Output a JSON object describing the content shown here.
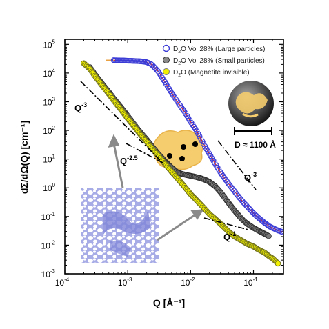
{
  "chart_data": {
    "type": "scatter",
    "x_scale": "log",
    "y_scale": "log",
    "xlim": [
      0.0001,
      0.3
    ],
    "ylim": [
      0.001,
      150000
    ],
    "xlabel": "Q [Å⁻¹]",
    "ylabel": "dΣ/dΩ(Q) [cm⁻¹]",
    "x_ticks": [
      {
        "value": 0.0001,
        "base": "10",
        "exp": "-4"
      },
      {
        "value": 0.001,
        "base": "10",
        "exp": "-3"
      },
      {
        "value": 0.01,
        "base": "10",
        "exp": "-2"
      },
      {
        "value": 0.1,
        "base": "10",
        "exp": "-1"
      }
    ],
    "y_ticks": [
      {
        "value": 0.001,
        "base": "10",
        "exp": "-3"
      },
      {
        "value": 0.01,
        "base": "10",
        "exp": "-2"
      },
      {
        "value": 0.1,
        "base": "10",
        "exp": "-1"
      },
      {
        "value": 1,
        "base": "10",
        "exp": "0"
      },
      {
        "value": 10,
        "base": "10",
        "exp": "1"
      },
      {
        "value": 100,
        "base": "10",
        "exp": "2"
      },
      {
        "value": 1000,
        "base": "10",
        "exp": "3"
      },
      {
        "value": 10000,
        "base": "10",
        "exp": "4"
      },
      {
        "value": 100000,
        "base": "10",
        "exp": "5"
      }
    ],
    "legend_position": "top-right",
    "legend": [
      {
        "pre": "D",
        "sub": "2",
        "post": "O Vol 28% (Large particles)",
        "marker": "open-circle",
        "color": "#3b3bd6"
      },
      {
        "pre": "D",
        "sub": "2",
        "post": "O Vol 28% (Small particles)",
        "marker": "filled-circle",
        "color": "#8a8a8a"
      },
      {
        "pre": "D",
        "sub": "2",
        "post": "O (Magnetite invisible)",
        "marker": "filled-circle",
        "color": "#f0f000"
      }
    ],
    "series": [
      {
        "name": "D2O Vol 28% (Large particles)",
        "marker": "open-circle",
        "color": "#3b3bd6",
        "x": [
          0.0006,
          0.0008,
          0.001,
          0.0012,
          0.0015,
          0.0018,
          0.002,
          0.0024,
          0.003,
          0.004,
          0.005,
          0.006,
          0.008,
          0.01,
          0.012,
          0.014,
          0.016,
          0.018,
          0.02,
          0.025,
          0.03,
          0.035,
          0.04,
          0.05,
          0.06,
          0.07,
          0.08,
          0.1,
          0.12,
          0.15,
          0.18,
          0.2,
          0.25,
          0.3
        ],
        "y": [
          28000,
          27500,
          27000,
          26500,
          26000,
          25000,
          24000,
          20000,
          12000,
          4500,
          2000,
          1100,
          450,
          200,
          110,
          60,
          35,
          22,
          15,
          6.5,
          3.4,
          2.1,
          1.4,
          0.75,
          0.45,
          0.3,
          0.22,
          0.13,
          0.09,
          0.06,
          0.045,
          0.04,
          0.032,
          0.028
        ]
      },
      {
        "name": "D2O Vol 28% (Small particles)",
        "marker": "filled-circle",
        "color": "#8a8a8a",
        "x": [
          0.00025,
          0.0003,
          0.0004,
          0.0005,
          0.0006,
          0.0008,
          0.001,
          0.0012,
          0.0015,
          0.002,
          0.0025,
          0.003,
          0.004,
          0.005,
          0.006,
          0.007,
          0.008,
          0.01,
          0.012,
          0.015,
          0.018,
          0.02,
          0.025,
          0.03,
          0.04,
          0.05,
          0.06,
          0.07,
          0.08,
          0.1,
          0.12,
          0.15,
          0.18
        ],
        "y": [
          16000,
          9000,
          4000,
          2200,
          1300,
          600,
          320,
          190,
          100,
          48,
          26,
          16,
          8,
          5,
          3.6,
          3.1,
          2.9,
          2.6,
          2.4,
          2.1,
          1.8,
          1.6,
          1.1,
          0.7,
          0.3,
          0.16,
          0.1,
          0.07,
          0.055,
          0.04,
          0.032,
          0.025,
          0.02
        ]
      },
      {
        "name": "D2O (Magnetite invisible)",
        "marker": "filled-circle",
        "color": "#f0f000",
        "x": [
          0.0002,
          0.00025,
          0.0003,
          0.0004,
          0.0005,
          0.0006,
          0.0008,
          0.001,
          0.0012,
          0.0015,
          0.002,
          0.0025,
          0.003,
          0.004,
          0.005,
          0.006,
          0.008,
          0.01,
          0.012,
          0.015,
          0.02,
          0.025,
          0.03,
          0.04,
          0.05,
          0.06,
          0.08,
          0.1,
          0.12,
          0.15,
          0.18,
          0.2,
          0.25
        ],
        "y": [
          22000,
          14000,
          8000,
          3500,
          1900,
          1100,
          500,
          260,
          160,
          85,
          40,
          22,
          14,
          6.5,
          3.6,
          2.3,
          1.1,
          0.6,
          0.4,
          0.24,
          0.12,
          0.08,
          0.055,
          0.03,
          0.02,
          0.016,
          0.011,
          0.009,
          0.007,
          0.0055,
          0.004,
          0.0035,
          0.0022
        ]
      }
    ],
    "fit_color": "#e02020",
    "plateau_color": "#e8a040",
    "annotations": {
      "q3_left": "Q",
      "q3_left_exp": "-3",
      "q25": "Q",
      "q25_exp": "-2.5",
      "q3_right": "Q",
      "q3_right_exp": "-3",
      "q1": "Q",
      "q1_exp": "-1",
      "diameter": "D ≈ 1100 Å"
    }
  }
}
